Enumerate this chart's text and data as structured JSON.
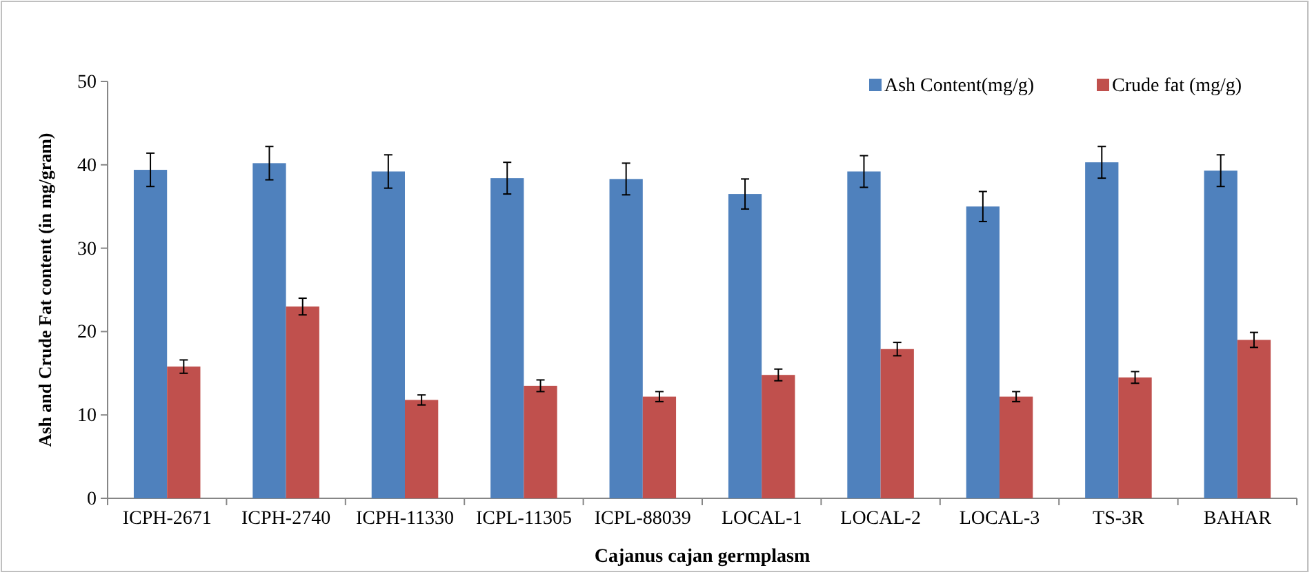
{
  "chart_data": {
    "type": "bar",
    "xlabel": "Cajanus cajan germplasm",
    "ylabel": "Ash and Crude Fat content (in mg/gram)",
    "categories": [
      "ICPH-2671",
      "ICPH-2740",
      "ICPH-11330",
      "ICPL-11305",
      "ICPL-88039",
      "LOCAL-1",
      "LOCAL-2",
      "LOCAL-3",
      "TS-3R",
      "BAHAR"
    ],
    "series": [
      {
        "name": "Ash Content(mg/g)",
        "color": "#4f81bd",
        "values": [
          39.4,
          40.2,
          39.2,
          38.4,
          38.3,
          36.5,
          39.2,
          35.0,
          40.3,
          39.3
        ],
        "errors": [
          2,
          2,
          2,
          1.9,
          1.9,
          1.8,
          1.9,
          1.8,
          1.9,
          1.9
        ]
      },
      {
        "name": "Crude fat (mg/g)",
        "color": "#c0504d",
        "values": [
          15.8,
          23.0,
          11.8,
          13.5,
          12.2,
          14.8,
          17.9,
          12.2,
          14.5,
          19.0
        ],
        "errors": [
          0.8,
          1,
          0.6,
          0.7,
          0.6,
          0.7,
          0.8,
          0.6,
          0.7,
          0.9
        ]
      }
    ],
    "ylim": [
      0,
      50
    ],
    "yticks": [
      0,
      10,
      20,
      30,
      40,
      50
    ],
    "grid": false,
    "legend": "top right"
  }
}
